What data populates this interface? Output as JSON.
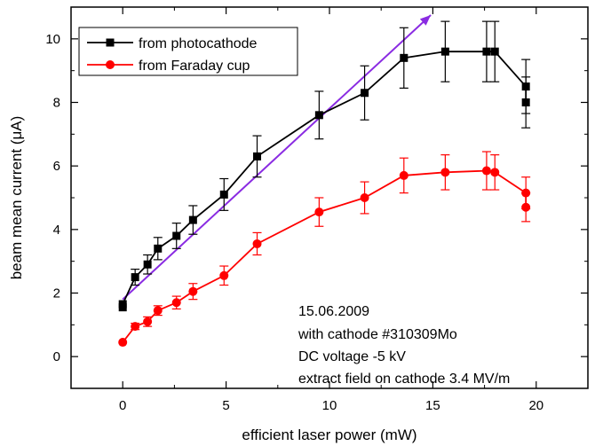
{
  "chart_data": {
    "type": "line",
    "xlabel": "efficient laser power (mW)",
    "ylabel": "beam mean current (μA)",
    "xlim": [
      -2.5,
      22.5
    ],
    "ylim": [
      -1,
      11
    ],
    "xticks": [
      0,
      5,
      10,
      15,
      20
    ],
    "yticks": [
      0,
      2,
      4,
      6,
      8,
      10
    ],
    "grid": false,
    "legend_position": "top-left",
    "series": [
      {
        "name": "from photocathode",
        "color": "#000000",
        "marker": "square",
        "x": [
          0,
          0,
          0.6,
          1.2,
          1.7,
          2.6,
          3.4,
          4.9,
          6.5,
          9.5,
          11.7,
          13.6,
          15.6,
          17.6,
          18,
          19.5,
          19.5
        ],
        "y": [
          1.55,
          1.65,
          2.5,
          2.9,
          3.4,
          3.8,
          4.3,
          5.1,
          6.3,
          7.6,
          8.3,
          9.4,
          9.6,
          9.6,
          9.6,
          8.5,
          8.0
        ],
        "err": [
          0,
          0,
          0.25,
          0.3,
          0.35,
          0.4,
          0.45,
          0.5,
          0.65,
          0.75,
          0.85,
          0.95,
          0.95,
          0.95,
          0.95,
          0.85,
          0.8
        ]
      },
      {
        "name": "from Faraday cup",
        "color": "#ff0000",
        "marker": "circle",
        "x": [
          0,
          0.6,
          1.2,
          1.7,
          2.6,
          3.4,
          4.9,
          6.5,
          9.5,
          11.7,
          13.6,
          15.6,
          17.6,
          18,
          19.5,
          19.5
        ],
        "y": [
          0.45,
          0.95,
          1.1,
          1.45,
          1.7,
          2.05,
          2.55,
          3.55,
          4.55,
          5.0,
          5.7,
          5.8,
          5.85,
          5.8,
          5.15,
          4.7
        ],
        "err": [
          0,
          0.1,
          0.15,
          0.15,
          0.2,
          0.25,
          0.3,
          0.35,
          0.45,
          0.5,
          0.55,
          0.55,
          0.6,
          0.55,
          0.5,
          0.45
        ]
      }
    ],
    "trend_arrow": {
      "color": "#8a2be2",
      "from": [
        0,
        1.8
      ],
      "to": [
        14.9,
        10.75
      ]
    },
    "annotations": [
      "15.06.2009",
      "with cathode #310309Mo",
      "DC voltage -5 kV",
      "extract field on cathode 3.4 MV/m"
    ]
  }
}
